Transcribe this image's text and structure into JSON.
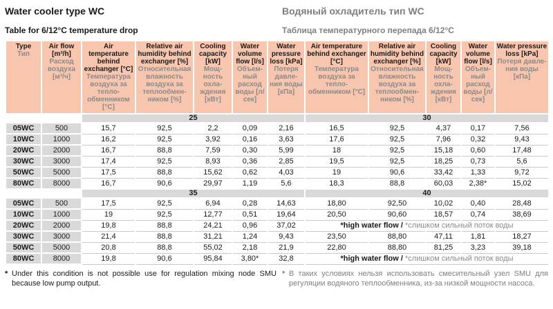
{
  "page": {
    "title_en": "Water cooler type WC",
    "title_ru": "Водяный охладитель тип WC",
    "subtitle_en": "Table for 6/12°C temperature drop",
    "subtitle_ru": "Таблица температурного перепада 6/12°C"
  },
  "colors": {
    "header_bg": "#f8c6ae",
    "band_bg": "#d9d9d9",
    "gray_cell_bg": "#d9d9d9",
    "row_divider": "#c9c9c9",
    "ru_text_gray": "#7f7f7f",
    "text_black": "#1a1a1a"
  },
  "table": {
    "columns": [
      {
        "en": "Type",
        "ru": "Тип"
      },
      {
        "en": "Air flow [m³/h]",
        "ru": "Расход воздуха [м³/ч]"
      },
      {
        "en": "Air temperature behind exchanger [°C]",
        "ru": "Температура воздуха за тепло-обменником [°C]"
      },
      {
        "en": "Relative air humidity behind exchanger [%]",
        "ru": "Относительная влажность воздуха за теплообмен-ником [%]"
      },
      {
        "en": "Cooling capacity [kW]",
        "ru": "Мощ-ность охла-ждения [кВт]"
      },
      {
        "en": "Water volume flow [l/s]",
        "ru": "Объем-ный расход воды [л/сек]"
      },
      {
        "en": "Water pressure loss [kPa]",
        "ru": "Потеря давле-ния воды [кПа]"
      },
      {
        "en": "Air temperature behind exchanger [°C]",
        "ru": "Температура воздуха за тепло-обменником [°C]"
      },
      {
        "en": "Relative air humidity behind exchanger [%]",
        "ru": "Относительная влажность воздуха за теплообмен-ником [%]"
      },
      {
        "en": "Cooling capacity [kW]",
        "ru": "Мощ-ность охла-ждения [кВт]"
      },
      {
        "en": "Water volume flow [l/s]",
        "ru": "Объем-ный расход воды [л/сек]"
      },
      {
        "en": "Water pressure loss [kPa]",
        "ru": "Потеря давле-ния воды [кПа]"
      }
    ],
    "groups": [
      {
        "band_left": "25",
        "band_right": "30",
        "rows": [
          {
            "type": "05WC",
            "airflow": "500",
            "left": [
              "15,7",
              "92,5",
              "2,2",
              "0,09",
              "2,16"
            ],
            "right": [
              "16,5",
              "92,5",
              "4,37",
              "0,17",
              "7,56"
            ]
          },
          {
            "type": "10WC",
            "airflow": "1000",
            "left": [
              "16,2",
              "92,5",
              "3,92",
              "0,16",
              "3,63"
            ],
            "right": [
              "17,6",
              "92,5",
              "7,96",
              "0,32",
              "9,43"
            ]
          },
          {
            "type": "20WC",
            "airflow": "2000",
            "left": [
              "16,7",
              "88,8",
              "7,59",
              "0,30",
              "5,99"
            ],
            "right": [
              "18",
              "92,5",
              "15,18",
              "0,60",
              "17,48"
            ]
          },
          {
            "type": "30WC",
            "airflow": "3000",
            "left": [
              "17,4",
              "92,5",
              "8,93",
              "0,36",
              "2,85"
            ],
            "right": [
              "19,5",
              "92,5",
              "18,25",
              "0,73",
              "5,6"
            ]
          },
          {
            "type": "50WC",
            "airflow": "5000",
            "left": [
              "17,5",
              "88,8",
              "15,62",
              "0,62",
              "4,03"
            ],
            "right": [
              "19",
              "90,6",
              "33,42",
              "1,33",
              "9,72"
            ]
          },
          {
            "type": "80WC",
            "airflow": "8000",
            "left": [
              "16,7",
              "90,6",
              "29,97",
              "1,19",
              "5,6"
            ],
            "right": [
              "18,3",
              "88,8",
              "60,03",
              "2,38*",
              "15,02"
            ]
          }
        ]
      },
      {
        "band_left": "35",
        "band_right": "40",
        "rows": [
          {
            "type": "05WC",
            "airflow": "500",
            "left": [
              "17,5",
              "92,5",
              "6,94",
              "0,28",
              "14,63"
            ],
            "right": [
              "18,80",
              "92,50",
              "10,02",
              "0,40",
              "28,48"
            ]
          },
          {
            "type": "10WC",
            "airflow": "1000",
            "left": [
              "19",
              "92,5",
              "12,77",
              "0,51",
              "19,64"
            ],
            "right": [
              "20,50",
              "90,60",
              "18,57",
              "0,74",
              "38,69"
            ]
          },
          {
            "type": "20WC",
            "airflow": "2000",
            "left": [
              "19,8",
              "88,8",
              "24,21",
              "0,96",
              "37,02"
            ],
            "note": {
              "en": "*high water flow / ",
              "ru": "*слишком сильный поток воды"
            }
          },
          {
            "type": "30WC",
            "airflow": "3000",
            "left": [
              "21,4",
              "88,8",
              "31,21",
              "1,24",
              "9,43"
            ],
            "right": [
              "23,50",
              "88,80",
              "47,11",
              "1,81",
              "18,27"
            ]
          },
          {
            "type": "50WC",
            "airflow": "5000",
            "left": [
              "20,8",
              "88,8",
              "55,02",
              "2,18",
              "21,9"
            ],
            "right": [
              "22,80",
              "88,80",
              "81,25",
              "3,23",
              "39,18"
            ]
          },
          {
            "type": "80WC",
            "airflow": "8000",
            "left": [
              "19,8",
              "90,6",
              "95,84",
              "3,80*",
              "32,8"
            ],
            "note": {
              "en": "*high water flow / ",
              "ru": "*слишком сильный поток воды"
            }
          }
        ]
      }
    ]
  },
  "footnotes": {
    "en_star": "*",
    "en_text": "Under this condition is not possible use for regulation mixing node SMU because low pump output.",
    "ru_star": "*",
    "ru_text": "В таких условиях нельзя использовать смесительный узел SMU для регуляции водяного теплообменника, из-за низкой мощности насоса."
  }
}
